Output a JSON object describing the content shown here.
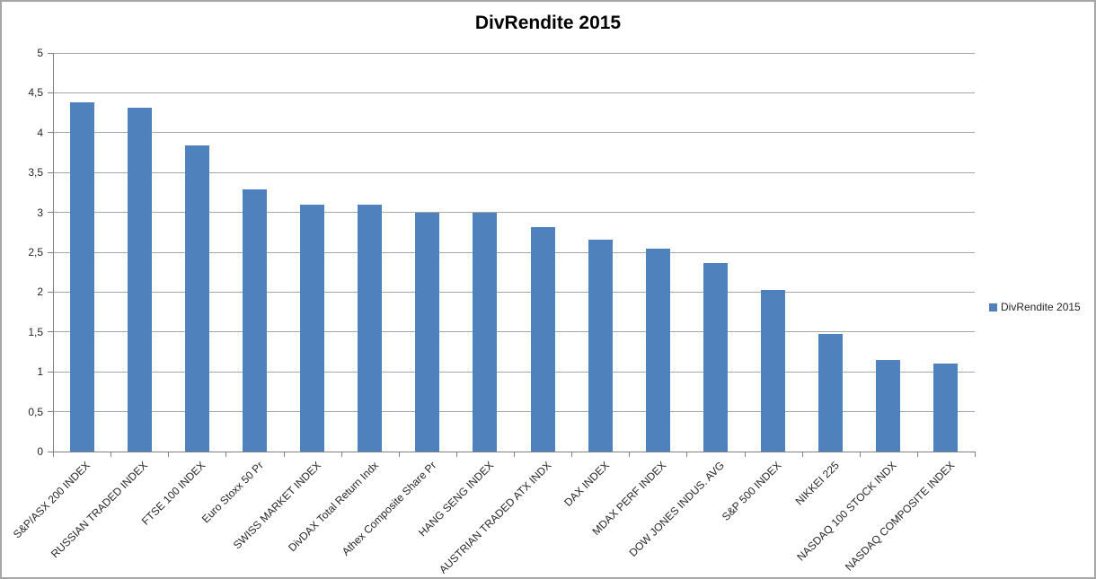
{
  "chart_data": {
    "type": "bar",
    "title": "DivRendite 2015",
    "series_name": "DivRendite 2015",
    "categories": [
      "S&P/ASX 200 INDEX",
      "RUSSIAN TRADED INDEX",
      "FTSE 100 INDEX",
      "Euro Stoxx 50 Pr",
      "SWISS MARKET INDEX",
      "DivDAX Total Return Indx",
      "Athex Composite Share Pr",
      "HANG SENG INDEX",
      "AUSTRIAN TRADED ATX INDX",
      "DAX INDEX",
      "MDAX PERF INDEX",
      "DOW JONES INDUS. AVG",
      "S&P 500 INDEX",
      "NIKKEI 225",
      "NASDAQ 100 STOCK INDX",
      "NASDAQ COMPOSITE INDEX"
    ],
    "values": [
      4.38,
      4.31,
      3.84,
      3.29,
      3.1,
      3.1,
      3.0,
      3.0,
      2.81,
      2.66,
      2.54,
      2.37,
      2.03,
      1.48,
      1.15,
      1.1
    ],
    "xlabel": "",
    "ylabel": "",
    "ylim": [
      0,
      5
    ],
    "ytick_step": 0.5,
    "ytick_labels": [
      "0",
      "0,5",
      "1",
      "1,5",
      "2",
      "2,5",
      "3",
      "3,5",
      "4",
      "4,5",
      "5"
    ],
    "decimal_separator": ",",
    "grid": true,
    "legend_position": "right",
    "legend_label": "DivRendite 2015"
  },
  "colors": {
    "bar_fill": "#4f81bd",
    "gridline": "#a6a6a6",
    "axis_line": "#808080",
    "chart_border": "#a6a6a6",
    "label_text": "#262626",
    "title_text": "#000000"
  }
}
